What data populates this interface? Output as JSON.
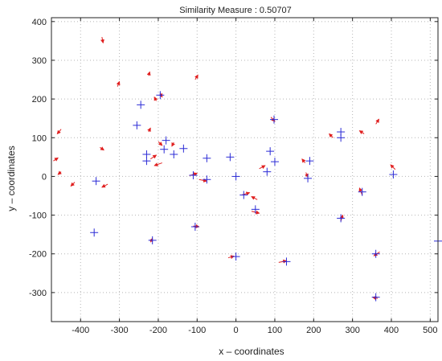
{
  "chart_data": {
    "type": "scatter",
    "title": "Similarity Measure : 0.50707",
    "xlabel": "x – coordinates",
    "ylabel": "y – coordinates",
    "xlim": [
      -475,
      520
    ],
    "ylim": [
      -375,
      410
    ],
    "xticks": [
      -400,
      -300,
      -200,
      -100,
      0,
      100,
      200,
      300,
      400,
      500
    ],
    "yticks": [
      -300,
      -200,
      -100,
      0,
      100,
      200,
      300,
      400
    ],
    "grid": true,
    "marker_color": "#2b2bd6",
    "arrow_color": "#e02020",
    "crosses": [
      [
        -245,
        185
      ],
      [
        -255,
        132
      ],
      [
        -195,
        210
      ],
      [
        -180,
        93
      ],
      [
        -185,
        70
      ],
      [
        -230,
        57
      ],
      [
        -230,
        40
      ],
      [
        -160,
        57
      ],
      [
        -135,
        72
      ],
      [
        -110,
        3
      ],
      [
        -75,
        47
      ],
      [
        -75,
        -8
      ],
      [
        -360,
        -12
      ],
      [
        -365,
        -145
      ],
      [
        -215,
        -165
      ],
      [
        -105,
        -130
      ],
      [
        -15,
        50
      ],
      [
        0,
        0
      ],
      [
        20,
        -48
      ],
      [
        50,
        -85
      ],
      [
        0,
        -207
      ],
      [
        130,
        -220
      ],
      [
        80,
        12
      ],
      [
        88,
        65
      ],
      [
        98,
        147
      ],
      [
        100,
        38
      ],
      [
        185,
        -5
      ],
      [
        190,
        40
      ],
      [
        270,
        115
      ],
      [
        270,
        100
      ],
      [
        270,
        -108
      ],
      [
        325,
        -40
      ],
      [
        405,
        5
      ],
      [
        520,
        -167
      ],
      [
        360,
        -200
      ],
      [
        360,
        -312
      ]
    ],
    "arrows": [
      [
        [
          -345,
          360
        ],
        [
          -342,
          345
        ]
      ],
      [
        [
          -305,
          232
        ],
        [
          -300,
          245
        ]
      ],
      [
        [
          -225,
          260
        ],
        [
          -222,
          270
        ]
      ],
      [
        [
          -205,
          195
        ],
        [
          -210,
          205
        ]
      ],
      [
        [
          -105,
          250
        ],
        [
          -98,
          262
        ]
      ],
      [
        [
          -195,
          215
        ],
        [
          -190,
          205
        ]
      ],
      [
        [
          -450,
          122
        ],
        [
          -460,
          110
        ]
      ],
      [
        [
          -350,
          75
        ],
        [
          -340,
          68
        ]
      ],
      [
        [
          -225,
          115
        ],
        [
          -220,
          125
        ]
      ],
      [
        [
          -200,
          90
        ],
        [
          -190,
          80
        ]
      ],
      [
        [
          -160,
          88
        ],
        [
          -165,
          78
        ]
      ],
      [
        [
          -220,
          45
        ],
        [
          -205,
          55
        ]
      ],
      [
        [
          -190,
          35
        ],
        [
          -210,
          28
        ]
      ],
      [
        [
          -470,
          40
        ],
        [
          -458,
          48
        ]
      ],
      [
        [
          -450,
          12
        ],
        [
          -458,
          5
        ]
      ],
      [
        [
          -415,
          -15
        ],
        [
          -425,
          -25
        ]
      ],
      [
        [
          -330,
          -20
        ],
        [
          -345,
          -28
        ]
      ],
      [
        [
          55,
          -60
        ],
        [
          40,
          -52
        ]
      ],
      [
        [
          -120,
          2
        ],
        [
          -100,
          8
        ]
      ],
      [
        [
          -95,
          -8
        ],
        [
          -75,
          -12
        ]
      ],
      [
        [
          15,
          -48
        ],
        [
          35,
          -42
        ]
      ],
      [
        [
          40,
          -90
        ],
        [
          60,
          -95
        ]
      ],
      [
        [
          -20,
          -210
        ],
        [
          -5,
          -206
        ]
      ],
      [
        [
          110,
          -222
        ],
        [
          130,
          -218
        ]
      ],
      [
        [
          -220,
          -170
        ],
        [
          -215,
          -160
        ]
      ],
      [
        [
          -110,
          -128
        ],
        [
          -95,
          -130
        ]
      ],
      [
        [
          60,
          20
        ],
        [
          75,
          28
        ]
      ],
      [
        [
          90,
          153
        ],
        [
          100,
          142
        ]
      ],
      [
        [
          180,
          10
        ],
        [
          185,
          -2
        ]
      ],
      [
        [
          250,
          100
        ],
        [
          240,
          110
        ]
      ],
      [
        [
          360,
          135
        ],
        [
          368,
          148
        ]
      ],
      [
        [
          330,
          110
        ],
        [
          318,
          118
        ]
      ],
      [
        [
          410,
          18
        ],
        [
          398,
          30
        ]
      ],
      [
        [
          270,
          -115
        ],
        [
          275,
          -100
        ]
      ],
      [
        [
          325,
          -48
        ],
        [
          318,
          -30
        ]
      ],
      [
        [
          370,
          -195
        ],
        [
          355,
          -205
        ]
      ],
      [
        [
          365,
          -315
        ],
        [
          352,
          -312
        ]
      ],
      [
        [
          178,
          35
        ],
        [
          170,
          45
        ]
      ]
    ]
  }
}
